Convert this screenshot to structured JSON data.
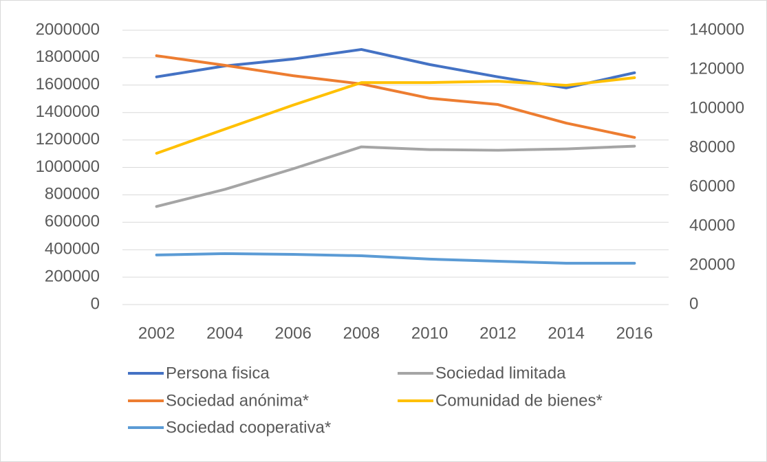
{
  "chart_data": {
    "type": "line",
    "categories": [
      "2002",
      "2004",
      "2006",
      "2008",
      "2010",
      "2012",
      "2014",
      "2016"
    ],
    "series": [
      {
        "name": "Persona fisica",
        "color": "#4472c4",
        "values": [
          1660000,
          1740000,
          1790000,
          1860000,
          1750000,
          1660000,
          1580000,
          1690000
        ]
      },
      {
        "name": "Sociedad limitada",
        "color": "#a5a5a5",
        "values": [
          715000,
          840000,
          990000,
          1150000,
          1130000,
          1125000,
          1135000,
          1155000
        ]
      },
      {
        "name": "Sociedad anónima*",
        "color": "#ed7d31",
        "axis": "y2",
        "values": [
          127000,
          122100,
          116800,
          112600,
          105300,
          102100,
          92600,
          85300
        ]
      },
      {
        "name": "Comunidad de bienes*",
        "color": "#ffc000",
        "axis": "y2",
        "values": [
          77200,
          89500,
          101800,
          113300,
          113300,
          114000,
          111900,
          115800
        ]
      },
      {
        "name": "Sociedad cooperativa*",
        "color": "#5b9bd5",
        "axis": "y2",
        "values": [
          25300,
          26000,
          25600,
          24900,
          23200,
          22100,
          21100,
          21100
        ]
      }
    ],
    "ylim": [
      0,
      2000000
    ],
    "yticks": [
      0,
      200000,
      400000,
      600000,
      800000,
      1000000,
      1200000,
      1400000,
      1600000,
      1800000,
      2000000
    ],
    "y2lim": [
      0,
      140000
    ],
    "y2ticks": [
      0,
      20000,
      40000,
      60000,
      80000,
      100000,
      120000,
      140000
    ],
    "grid": true,
    "legend": "bottom"
  }
}
